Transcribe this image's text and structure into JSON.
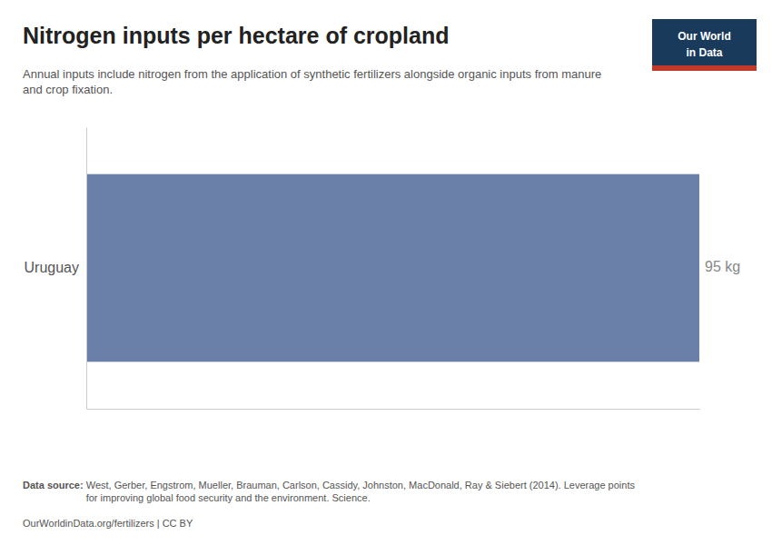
{
  "chart_data": {
    "type": "bar",
    "orientation": "horizontal",
    "title": "Nitrogen inputs per hectare of cropland",
    "subtitle": "Annual inputs include nitrogen from the application of synthetic fertilizers alongside organic inputs from manure\nand crop fixation.",
    "categories": [
      "Uruguay"
    ],
    "values": [
      95
    ],
    "value_labels": [
      "95 kg"
    ],
    "data_labels": true,
    "color": "#6b80a8",
    "xlim": [
      0,
      95
    ],
    "tick_labels": "y",
    "grid": false,
    "annotations": [
      "Our World",
      "in Data",
      "Data source:",
      " West, Gerber, Engstrom, Mueller, Brauman, Carlson, Cassidy, Johnston, MacDonald, Ray & Siebert (2014). Leverage points\nfor improving global food security and the environment. Science.",
      "OurWorldinData.org/fertilizers | CC BY"
    ]
  }
}
